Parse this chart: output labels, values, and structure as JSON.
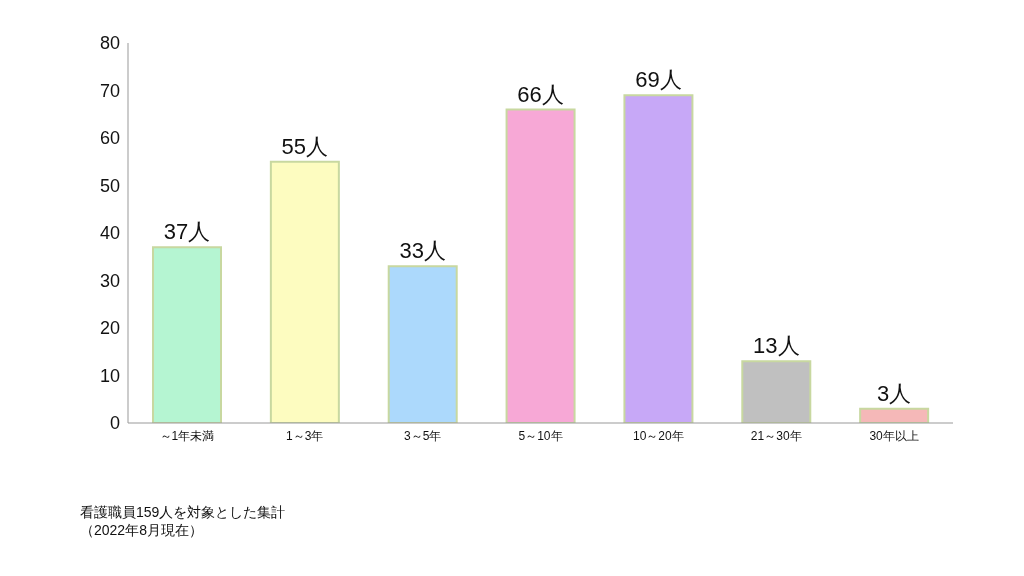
{
  "chart_data": {
    "type": "bar",
    "categories": [
      "～1年未満",
      "1～3年",
      "3～5年",
      "5～10年",
      "10～20年",
      "21～30年",
      "30年以上"
    ],
    "values": [
      37,
      55,
      33,
      66,
      69,
      13,
      3
    ],
    "colors": [
      "#b5f5d2",
      "#fdfcc0",
      "#acd9fc",
      "#f7a8d6",
      "#c7a8f7",
      "#c0c0c0",
      "#f5b8b8"
    ],
    "value_labels": [
      "37人",
      "55人",
      "33人",
      "66人",
      "69人",
      "13人",
      "3人"
    ],
    "ylim": [
      0,
      80
    ],
    "yticks": [
      0,
      10,
      20,
      30,
      40,
      50,
      60,
      70,
      80
    ],
    "grid": false,
    "legend": false,
    "annotations": [
      "看護職員159人を対象とした集計",
      "（2022年8月現在）"
    ]
  }
}
